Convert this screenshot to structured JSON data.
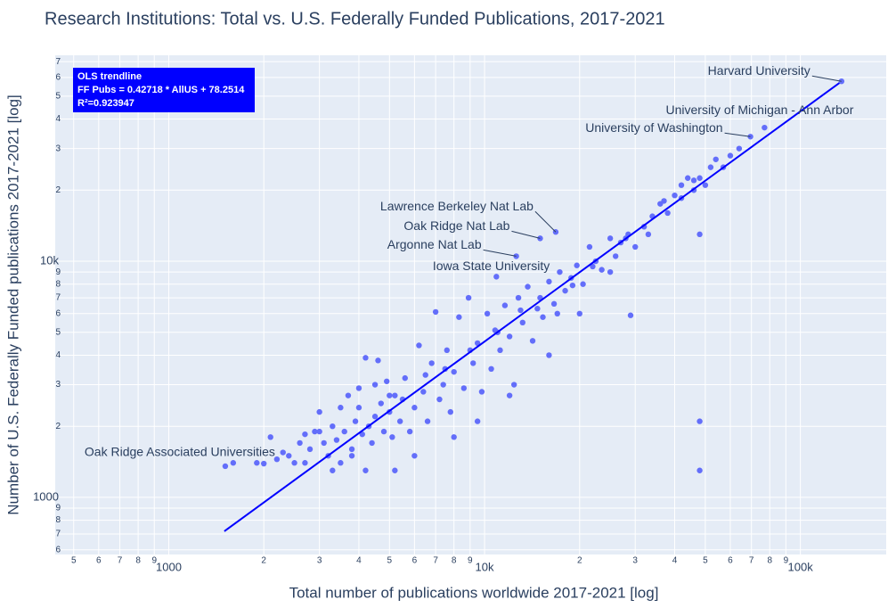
{
  "chart_data": {
    "type": "scatter",
    "title": "Research Institutions: Total vs. U.S. Federally Funded Publications, 2017-2021",
    "x_label": "Total number of publications worldwide 2017-2021 [log]",
    "y_label": "Number of U.S. Federally Funded publications 2017-2021 [log]",
    "log_x": true,
    "log_y": true,
    "grid": true,
    "color": "#636efa",
    "xlim": [
      437,
      187000
    ],
    "ylim": [
      573,
      74500
    ],
    "xticks": [
      {
        "value": 500,
        "label": "5"
      },
      {
        "value": 600,
        "label": "6"
      },
      {
        "value": 700,
        "label": "7"
      },
      {
        "value": 800,
        "label": "8"
      },
      {
        "value": 900,
        "label": "9"
      },
      1000,
      {
        "value": 2000,
        "label": "2"
      },
      {
        "value": 3000,
        "label": "3"
      },
      {
        "value": 4000,
        "label": "4"
      },
      {
        "value": 5000,
        "label": "5"
      },
      {
        "value": 6000,
        "label": "6"
      },
      {
        "value": 7000,
        "label": "7"
      },
      {
        "value": 8000,
        "label": "8"
      },
      {
        "value": 9000,
        "label": "9"
      },
      {
        "value": 10000,
        "label": "10k"
      },
      {
        "value": 20000,
        "label": "2"
      },
      {
        "value": 30000,
        "label": "3"
      },
      {
        "value": 40000,
        "label": "4"
      },
      {
        "value": 50000,
        "label": "5"
      },
      {
        "value": 60000,
        "label": "6"
      },
      {
        "value": 70000,
        "label": "7"
      },
      {
        "value": 80000,
        "label": "8"
      },
      {
        "value": 90000,
        "label": "9"
      },
      {
        "value": 100000,
        "label": "100k"
      }
    ],
    "yticks": [
      {
        "value": 600,
        "label": "6"
      },
      {
        "value": 700,
        "label": "7"
      },
      {
        "value": 800,
        "label": "8"
      },
      {
        "value": 900,
        "label": "9"
      },
      1000,
      {
        "value": 2000,
        "label": "2"
      },
      {
        "value": 3000,
        "label": "3"
      },
      {
        "value": 4000,
        "label": "4"
      },
      {
        "value": 5000,
        "label": "5"
      },
      {
        "value": 6000,
        "label": "6"
      },
      {
        "value": 7000,
        "label": "7"
      },
      {
        "value": 8000,
        "label": "8"
      },
      {
        "value": 9000,
        "label": "9"
      },
      {
        "value": 10000,
        "label": "10k"
      },
      {
        "value": 20000,
        "label": "2"
      },
      {
        "value": 30000,
        "label": "3"
      },
      {
        "value": 40000,
        "label": "4"
      },
      {
        "value": 50000,
        "label": "5"
      },
      {
        "value": 60000,
        "label": "6"
      },
      {
        "value": 70000,
        "label": "7"
      }
    ],
    "x": [
      1900,
      2000,
      2100,
      2200,
      2300,
      2400,
      2600,
      2700,
      2800,
      2900,
      3000,
      3100,
      3200,
      3300,
      3400,
      3500,
      3600,
      3700,
      3800,
      3900,
      4000,
      4100,
      4200,
      4300,
      4400,
      4500,
      4600,
      4700,
      4800,
      4900,
      5000,
      5100,
      5200,
      5400,
      5600,
      5800,
      6000,
      6200,
      6400,
      6600,
      6800,
      7000,
      7200,
      7400,
      7600,
      7800,
      8000,
      8300,
      8600,
      8900,
      9200,
      9500,
      9800,
      10200,
      10500,
      10800,
      11200,
      11600,
      12000,
      12400,
      12800,
      13200,
      13700,
      14200,
      14700,
      15300,
      16000,
      16600,
      17300,
      18000,
      18800,
      19600,
      20500,
      21500,
      22500,
      23500,
      25000,
      26000,
      27000,
      28500,
      29000,
      30000,
      32000,
      34000,
      36000,
      38000,
      40000,
      42000,
      44000,
      46000,
      48000,
      48000,
      48000,
      48000,
      50000,
      52000,
      54000,
      57000,
      60000,
      64000,
      1600,
      2500,
      3000,
      3500,
      4000,
      4500,
      5000,
      5500,
      6500,
      7500,
      9000,
      11000,
      13000,
      15000,
      17000,
      19000,
      22000,
      25000,
      28000,
      33000,
      37000,
      42000,
      46000,
      3300,
      4200,
      5200,
      6000,
      8000,
      9500,
      12000,
      16000,
      20000,
      2700,
      3800
    ],
    "values": [
      1400,
      1390,
      1800,
      1450,
      1550,
      1500,
      1700,
      1850,
      1600,
      1900,
      2300,
      1700,
      1500,
      2000,
      1750,
      1400,
      1900,
      2700,
      1600,
      2100,
      2400,
      1850,
      3900,
      2000,
      1700,
      2200,
      3800,
      2500,
      1900,
      3100,
      2300,
      1800,
      2700,
      2100,
      3200,
      1900,
      2400,
      4400,
      2800,
      2100,
      3700,
      6100,
      2600,
      3000,
      4200,
      2300,
      3400,
      5800,
      2900,
      7000,
      3700,
      4500,
      2800,
      6000,
      3500,
      5100,
      4200,
      6500,
      4800,
      3000,
      7000,
      5500,
      7800,
      4600,
      6300,
      5800,
      8200,
      6600,
      9000,
      7500,
      8500,
      9600,
      8000,
      11500,
      10000,
      9200,
      12500,
      10500,
      12000,
      13000,
      5900,
      11500,
      14000,
      15500,
      17500,
      16000,
      19000,
      21000,
      22500,
      20000,
      22500,
      13000,
      2100,
      1300,
      21000,
      25000,
      27000,
      25000,
      28000,
      30000,
      1400,
      1400,
      1900,
      2400,
      2900,
      3000,
      2700,
      2600,
      3300,
      3500,
      4200,
      5000,
      6200,
      7000,
      6000,
      7900,
      9500,
      9000,
      12500,
      13000,
      18000,
      18500,
      22000,
      1300,
      1300,
      1300,
      1500,
      1800,
      2100,
      2700,
      4000,
      6000,
      1400,
      1500
    ],
    "trendline": {
      "x": [
        1500,
        135000
      ],
      "values": [
        719,
        57748
      ],
      "color": "#0000ff"
    },
    "trend_box": {
      "title": "OLS trendline",
      "equation": "FF Pubs = 0.42718 * AllUS + 78.2514",
      "r2": "R²=0.923947"
    },
    "annotations": [
      {
        "text": "Harvard University",
        "x": 135000,
        "y": 57800
      },
      {
        "text": "University of Michigan - Ann Arbor",
        "x": 77000,
        "y": 36800
      },
      {
        "text": "University of Washington",
        "x": 69500,
        "y": 33700
      },
      {
        "text": "Lawrence Berkeley Nat Lab",
        "x": 16800,
        "y": 13300
      },
      {
        "text": "Oak Ridge Nat Lab",
        "x": 15000,
        "y": 12500
      },
      {
        "text": "Argonne Nat Lab",
        "x": 12600,
        "y": 10500
      },
      {
        "text": "Iowa State University",
        "x": 10900,
        "y": 8600
      },
      {
        "text": "Oak Ridge Associated Universities",
        "x": 1510,
        "y": 1355
      }
    ]
  }
}
